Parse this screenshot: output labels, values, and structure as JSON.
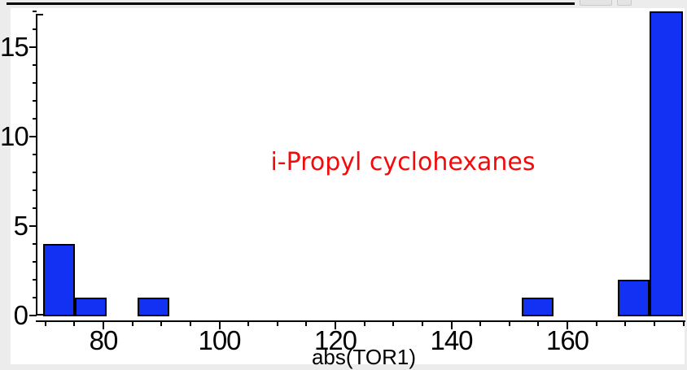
{
  "page": {
    "background_color": "#ececec",
    "panel_color": "#ffffff"
  },
  "chart_data": {
    "type": "histogram",
    "title": "",
    "annotation": {
      "text": "i-Propyl cyclohexanes",
      "color": "#f30b0b"
    },
    "xlabel": "abs(TOR1)",
    "ylabel": "",
    "x_axis": {
      "range": [
        68.5,
        180.3
      ],
      "major_ticks": [
        80,
        100,
        120,
        140,
        160
      ],
      "major_tick_labels": [
        "80",
        "100",
        "120",
        "140",
        "160"
      ],
      "minor_tick_step": 5,
      "minor_tick_min": 70,
      "minor_tick_max": 180
    },
    "y_axis": {
      "range": [
        0,
        17.2
      ],
      "major_ticks": [
        0,
        5,
        10,
        15
      ],
      "major_tick_labels": [
        "0",
        "5",
        "10",
        "15"
      ],
      "minor_tick_step": 1,
      "minor_tick_min": 0,
      "minor_tick_max": 17
    },
    "bins": [
      {
        "from": 69.6,
        "to": 75.1,
        "count": 4
      },
      {
        "from": 75.1,
        "to": 80.6,
        "count": 1
      },
      {
        "from": 85.9,
        "to": 91.4,
        "count": 1
      },
      {
        "from": 152.1,
        "to": 157.6,
        "count": 1
      },
      {
        "from": 168.7,
        "to": 174.2,
        "count": 2
      },
      {
        "from": 174.2,
        "to": 179.9,
        "count": 17
      }
    ],
    "bar_fill": "#1231f3",
    "bar_border": "#000000",
    "axis_color": "#000000",
    "grid": false,
    "legend": null
  }
}
